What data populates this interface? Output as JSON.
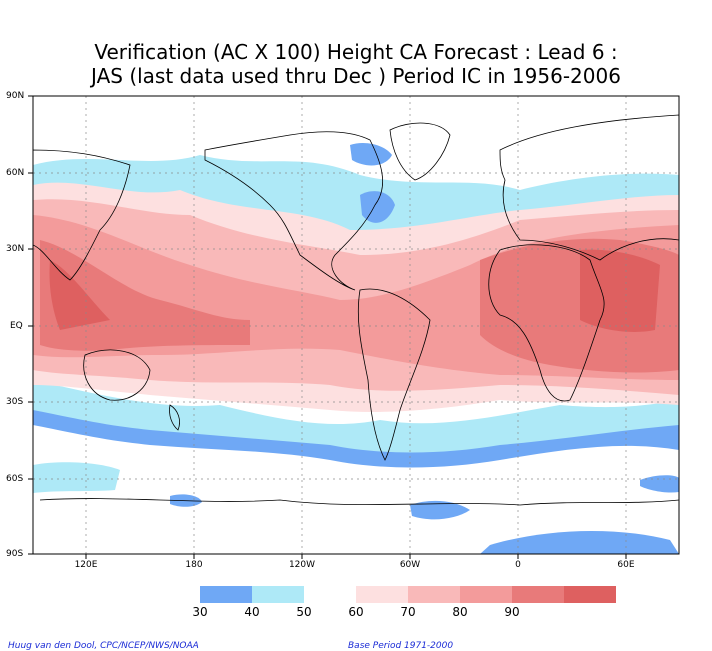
{
  "title": {
    "line1": "Verification (AC X 100) Height CA Forecast : Lead 6 :",
    "line2": "JAS (last data used thru Dec ) Period IC in 1956-2006"
  },
  "lat_labels": [
    "90N",
    "60N",
    "30N",
    "EQ",
    "30S",
    "60S",
    "90S"
  ],
  "lon_labels": [
    "120E",
    "180",
    "120W",
    "60W",
    "0",
    "60E"
  ],
  "colorbar": {
    "labels": [
      "30",
      "40",
      "50",
      "60",
      "70",
      "80",
      "90"
    ],
    "colors": [
      "#6fa8f5",
      "#aee9f7",
      "#ffffff",
      "#fde0e0",
      "#f9b9b9",
      "#f39b9b",
      "#e87a7a",
      "#de6060"
    ]
  },
  "credits": {
    "left": "Huug van den Dool, CPC/NCEP/NWS/NOAA",
    "right": "Base Period 1971-2000"
  }
}
